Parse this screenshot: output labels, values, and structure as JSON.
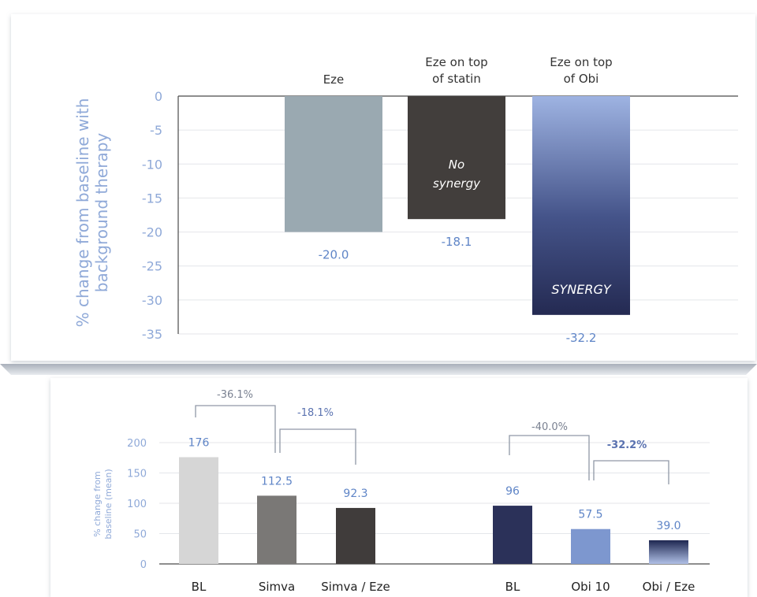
{
  "chart_data": [
    {
      "type": "bar",
      "title": "",
      "xlabel": "",
      "ylabel": "% change from baseline with background therapy",
      "ylim": [
        -35,
        0
      ],
      "yticks": [
        0,
        -5,
        -10,
        -15,
        -20,
        -25,
        -30,
        -35
      ],
      "grid": true,
      "categories": [
        "Eze",
        "Eze on top of statin",
        "Eze on top of Obi"
      ],
      "category_lines": [
        [
          "Eze"
        ],
        [
          "Eze on top",
          "of statin"
        ],
        [
          "Eze on top",
          "of Obi"
        ]
      ],
      "values": [
        -20.0,
        -18.1,
        -32.2
      ],
      "value_labels": [
        "-20.0",
        "-18.1",
        "-32.2"
      ],
      "bar_annotations": [
        [],
        [
          "No",
          "synergy"
        ],
        [
          "SYNERGY"
        ]
      ],
      "colors": [
        "#9aa9b1",
        "#423e3c",
        "gradient:#9eb3e2-#28305a"
      ]
    },
    {
      "type": "bar",
      "title": "",
      "xlabel": "",
      "ylabel": "% change from baseline (mean)",
      "ylim": [
        0,
        200
      ],
      "yticks": [
        0,
        50,
        100,
        150,
        200
      ],
      "grid": true,
      "categories": [
        "BL",
        "Simva",
        "Simva / Eze",
        "BL",
        "Obi 10",
        "Obi / Eze"
      ],
      "values": [
        176,
        112.5,
        92.3,
        96,
        57.5,
        39.0
      ],
      "value_labels": [
        "176",
        "112.5",
        "92.3",
        "96",
        "57.5",
        "39.0"
      ],
      "colors": [
        "#d6d6d6",
        "#7a7876",
        "#403c3b",
        "#2b3159",
        "#7d97cf",
        "gradient:#1e2750-#a9b9e3"
      ],
      "brackets": [
        {
          "from": 0,
          "to": 1,
          "label": "-36.1%"
        },
        {
          "from": 1,
          "to": 2,
          "label": "-18.1%"
        },
        {
          "from": 3,
          "to": 4,
          "label": "-40.0%"
        },
        {
          "from": 4,
          "to": 5,
          "label": "-32.2%"
        }
      ]
    }
  ],
  "colors": {
    "axis_label": "#8fa9d8",
    "tick_label": "#8fa9d8",
    "value_label": "#5f85c7",
    "bracket": "#9098a6",
    "bracket_text": "#7a8191",
    "bracket_emphasis": "#5a72b0"
  }
}
